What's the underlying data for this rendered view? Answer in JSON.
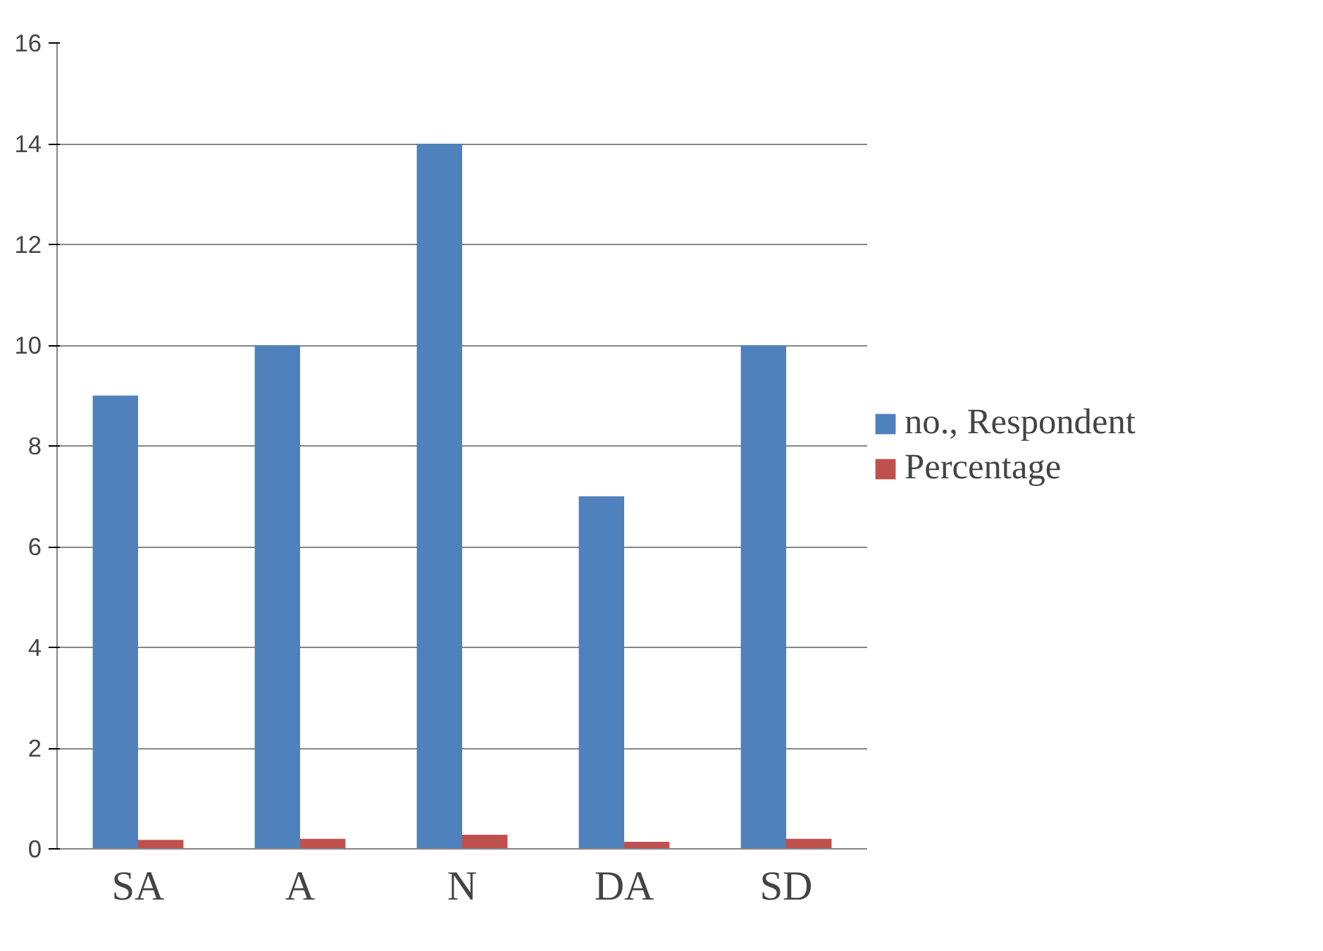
{
  "chart_data": {
    "type": "bar",
    "categories": [
      "SA",
      "A",
      "N",
      "DA",
      "SD"
    ],
    "series": [
      {
        "name": "no., Respondent",
        "color": "#4f81bd",
        "values": [
          9,
          10,
          14,
          7,
          10
        ]
      },
      {
        "name": "Percentage",
        "color": "#c0504d",
        "values": [
          0.18,
          0.2,
          0.28,
          0.14,
          0.2
        ]
      }
    ],
    "ylim": [
      0,
      16
    ],
    "yticks": [
      0,
      2,
      4,
      6,
      8,
      10,
      12,
      14,
      16
    ],
    "grid": "y",
    "legend": "right"
  }
}
